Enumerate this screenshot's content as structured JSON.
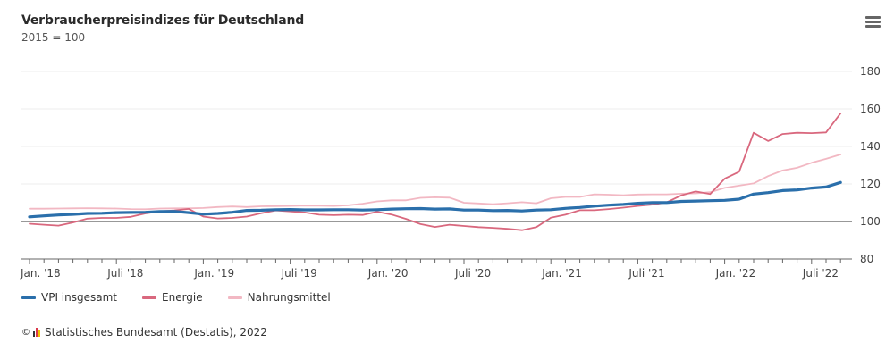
{
  "header": {
    "title": "Verbraucherpreisindizes für Deutschland",
    "subtitle": "2015 = 100",
    "menu_icon": "hamburger-menu-icon"
  },
  "credits": {
    "copyright_symbol": "©",
    "logo_icon": "destatis-logo-icon",
    "text": "Statistisches Bundesamt (Destatis), 2022"
  },
  "chart_data": {
    "type": "line",
    "title": "Verbraucherpreisindizes für Deutschland",
    "subtitle": "2015 = 100",
    "xlabel": "",
    "ylabel": "",
    "ylim": [
      80,
      180
    ],
    "yticks": [
      80,
      100,
      120,
      140,
      160,
      180
    ],
    "ytick_labels": [
      "80",
      "100",
      "120",
      "140",
      "160",
      "180"
    ],
    "y_axis_side": "right",
    "reference_line": 100,
    "grid": true,
    "legend_position": "bottom-left",
    "x_start": "2018-01",
    "x_count": 57,
    "x_tick_labels": [
      {
        "month_index": 0,
        "label": "Jan. '18"
      },
      {
        "month_index": 6,
        "label": "Juli '18"
      },
      {
        "month_index": 12,
        "label": "Jan. '19"
      },
      {
        "month_index": 18,
        "label": "Juli '19"
      },
      {
        "month_index": 24,
        "label": "Jan. '20"
      },
      {
        "month_index": 30,
        "label": "Juli '20"
      },
      {
        "month_index": 36,
        "label": "Jan. '21"
      },
      {
        "month_index": 42,
        "label": "Juli '21"
      },
      {
        "month_index": 48,
        "label": "Jan. '22"
      },
      {
        "month_index": 54,
        "label": "Juli '22"
      }
    ],
    "series": [
      {
        "name": "Nahrungsmittel",
        "color": "#f2b8c3",
        "values": [
          106.8,
          106.8,
          106.9,
          107.0,
          107.1,
          107.0,
          106.9,
          106.6,
          106.5,
          106.9,
          107.0,
          107.0,
          107.2,
          107.7,
          108.0,
          107.7,
          108.1,
          108.2,
          108.3,
          108.5,
          108.4,
          108.3,
          108.6,
          109.5,
          110.7,
          111.3,
          111.3,
          112.6,
          112.9,
          112.7,
          110.0,
          109.6,
          109.2,
          109.7,
          110.3,
          109.7,
          112.4,
          113.1,
          113.1,
          114.5,
          114.3,
          114.0,
          114.4,
          114.5,
          114.5,
          114.8,
          115.0,
          115.6,
          117.9,
          119.1,
          120.3,
          124.2,
          127.2,
          128.6,
          131.3,
          133.4,
          135.7
        ]
      },
      {
        "name": "Energie",
        "color": "#d9687e",
        "values": [
          98.8,
          98.3,
          97.8,
          99.5,
          101.5,
          101.9,
          101.9,
          102.5,
          104.3,
          105.4,
          105.9,
          106.7,
          102.6,
          101.6,
          101.9,
          102.6,
          104.4,
          105.9,
          105.4,
          104.8,
          103.6,
          103.4,
          103.6,
          103.5,
          105.2,
          103.7,
          101.4,
          98.6,
          97.1,
          98.3,
          97.6,
          97.0,
          96.6,
          96.1,
          95.4,
          97.0,
          102.0,
          103.6,
          106.0,
          106.0,
          106.6,
          107.4,
          108.3,
          109.0,
          110.2,
          113.9,
          116.0,
          114.6,
          122.8,
          126.5,
          147.3,
          142.9,
          146.6,
          147.3,
          147.1,
          147.5,
          157.6
        ]
      },
      {
        "name": "VPI insgesamt",
        "color": "#2a6fab",
        "values": [
          102.5,
          103.0,
          103.5,
          103.8,
          104.3,
          104.4,
          104.7,
          104.8,
          104.9,
          105.3,
          105.4,
          104.7,
          103.9,
          104.3,
          104.9,
          105.9,
          106.0,
          106.3,
          106.4,
          106.2,
          106.2,
          106.3,
          106.3,
          106.1,
          106.3,
          106.6,
          106.8,
          106.9,
          106.6,
          106.7,
          106.1,
          106.1,
          105.8,
          105.9,
          105.6,
          106.1,
          106.3,
          107.0,
          107.5,
          108.2,
          108.7,
          109.1,
          109.7,
          110.1,
          110.1,
          110.7,
          110.9,
          111.1,
          111.3,
          111.9,
          114.6,
          115.4,
          116.5,
          116.8,
          117.8,
          118.4,
          120.8
        ]
      }
    ]
  }
}
